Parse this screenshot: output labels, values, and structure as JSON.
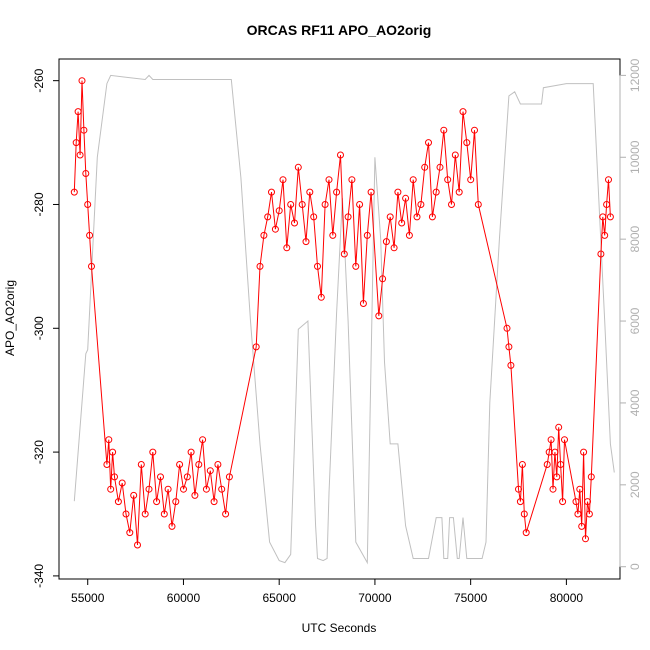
{
  "chart_data": {
    "type": "line",
    "title": "ORCAS RF11 APO_AO2orig",
    "xlabel": "UTC Seconds",
    "ylabel": "APO_AO2orig",
    "xlim": [
      53500,
      82800
    ],
    "ylim": [
      -340.5,
      -256.5
    ],
    "y2lim": [
      -300,
      12400
    ],
    "x_ticks": [
      55000,
      60000,
      65000,
      70000,
      75000,
      80000
    ],
    "y_ticks": [
      -340,
      -320,
      -300,
      -280,
      -260
    ],
    "y2_ticks": [
      0,
      2000,
      4000,
      6000,
      8000,
      10000,
      12000
    ],
    "series": [
      {
        "role": "primary",
        "color": "#ff0000",
        "markers": "open-circle",
        "x": [
          54300,
          54400,
          54500,
          54600,
          54700,
          54800,
          54900,
          55000,
          55100,
          55200,
          56000,
          56100,
          56200,
          56300,
          56400,
          56600,
          56800,
          57000,
          57200,
          57400,
          57600,
          57800,
          58000,
          58200,
          58400,
          58600,
          58800,
          59000,
          59200,
          59400,
          59600,
          59800,
          60000,
          60200,
          60400,
          60600,
          60800,
          61000,
          61200,
          61400,
          61600,
          61800,
          62000,
          62200,
          62400,
          63800,
          64000,
          64200,
          64400,
          64600,
          64800,
          65000,
          65200,
          65400,
          65600,
          65800,
          66000,
          66200,
          66400,
          66600,
          66800,
          67000,
          67200,
          67400,
          67600,
          67800,
          68000,
          68200,
          68400,
          68600,
          68800,
          69000,
          69200,
          69400,
          69600,
          69800,
          70200,
          70400,
          70600,
          70800,
          71000,
          71200,
          71400,
          71600,
          71800,
          72000,
          72200,
          72400,
          72600,
          72800,
          73000,
          73200,
          73400,
          73600,
          73800,
          74000,
          74200,
          74400,
          74600,
          74800,
          75000,
          75200,
          75400,
          76900,
          77000,
          77100,
          77500,
          77600,
          77700,
          77800,
          77900,
          79000,
          79100,
          79200,
          79300,
          79400,
          79500,
          79600,
          79700,
          79800,
          79900,
          80500,
          80600,
          80700,
          80800,
          80900,
          81000,
          81100,
          81200,
          81300,
          81800,
          81900,
          82000,
          82100,
          82200,
          82300
        ],
        "y": [
          -278,
          -270,
          -265,
          -272,
          -260,
          -268,
          -275,
          -280,
          -285,
          -290,
          -322,
          -318,
          -326,
          -320,
          -324,
          -328,
          -325,
          -330,
          -333,
          -327,
          -335,
          -322,
          -330,
          -326,
          -320,
          -328,
          -324,
          -330,
          -326,
          -332,
          -328,
          -322,
          -326,
          -324,
          -320,
          -327,
          -322,
          -318,
          -326,
          -323,
          -328,
          -322,
          -326,
          -330,
          -324,
          -303,
          -290,
          -285,
          -282,
          -278,
          -284,
          -281,
          -276,
          -287,
          -280,
          -283,
          -274,
          -280,
          -286,
          -278,
          -282,
          -290,
          -295,
          -280,
          -276,
          -285,
          -278,
          -272,
          -288,
          -282,
          -276,
          -290,
          -280,
          -296,
          -285,
          -278,
          -298,
          -292,
          -286,
          -282,
          -287,
          -278,
          -283,
          -279,
          -285,
          -276,
          -282,
          -280,
          -274,
          -270,
          -282,
          -278,
          -274,
          -268,
          -276,
          -280,
          -272,
          -278,
          -265,
          -270,
          -276,
          -268,
          -280,
          -300,
          -303,
          -306,
          -326,
          -328,
          -322,
          -330,
          -333,
          -322,
          -320,
          -318,
          -326,
          -320,
          -324,
          -316,
          -322,
          -328,
          -318,
          -328,
          -330,
          -326,
          -332,
          -320,
          -334,
          -328,
          -330,
          -324,
          -288,
          -282,
          -285,
          -280,
          -276,
          -282
        ]
      },
      {
        "role": "secondary-axis",
        "color": "#c0c0c0",
        "markers": "none",
        "x": [
          54300,
          54900,
          55000,
          55500,
          56000,
          56200,
          58000,
          58200,
          58400,
          62500,
          63000,
          63500,
          64000,
          64500,
          65000,
          65300,
          65600,
          66000,
          66500,
          66900,
          67000,
          67300,
          67500,
          67600,
          68000,
          68300,
          68600,
          69000,
          69600,
          70000,
          70300,
          70500,
          70800,
          71200,
          71600,
          72000,
          72500,
          72800,
          73200,
          73500,
          73600,
          73800,
          73900,
          74100,
          74300,
          74400,
          74600,
          74800,
          75200,
          75600,
          75800,
          76000,
          76500,
          77000,
          77300,
          77600,
          78700,
          78800,
          80000,
          81400,
          82000,
          82300,
          82500
        ],
        "y": [
          1600,
          5200,
          5300,
          10000,
          11800,
          12000,
          11900,
          12000,
          11900,
          11900,
          9500,
          6000,
          3000,
          600,
          150,
          100,
          300,
          5800,
          6000,
          1000,
          200,
          150,
          200,
          1800,
          6200,
          9000,
          6000,
          600,
          100,
          10000,
          8000,
          5000,
          3000,
          3000,
          1000,
          200,
          200,
          200,
          1200,
          1200,
          200,
          200,
          1200,
          1200,
          200,
          200,
          1200,
          200,
          200,
          200,
          600,
          4000,
          8000,
          11500,
          11600,
          11300,
          11300,
          11700,
          11800,
          11800,
          6000,
          3000,
          2300
        ]
      }
    ]
  }
}
